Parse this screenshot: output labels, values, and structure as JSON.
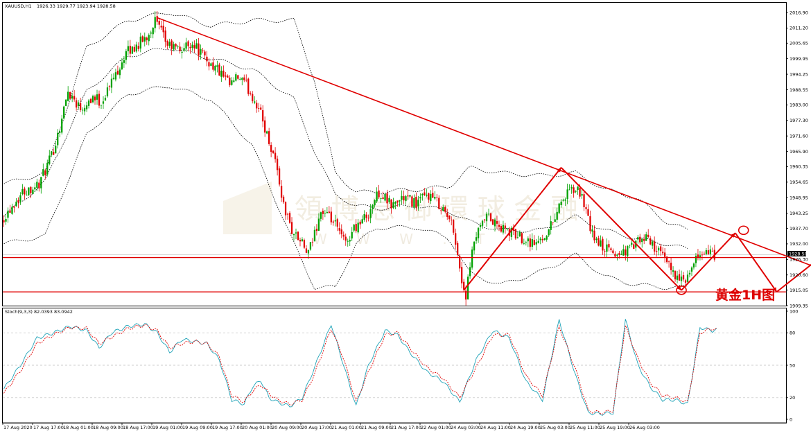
{
  "header": {
    "symbol": "XAUUSD,H1",
    "ohlc": "1926.33 1929.77 1923.94 1928.58"
  },
  "stoch": {
    "label": "Stoch(9,3,3) 82.0393 83.0942"
  },
  "watermark": {
    "cn": "領 博 息 御 環 球 金 融",
    "latin": "W W W . T"
  },
  "annotation": "黄金1H图",
  "price_tag": "1928.58",
  "colors": {
    "bull": "#00a000",
    "bear": "#e00000",
    "red_line": "#e00000",
    "band": "#000000",
    "stoch_main": "#1fa3b8",
    "stoch_signal": "#e00000",
    "frame": "#000000",
    "hline": "#c9c9c9"
  },
  "chart_data": [
    {
      "type": "candlestick",
      "title": "XAUUSD,H1",
      "ylim": [
        1909.35,
        2016.9
      ],
      "y_ticks": [
        "2016.90",
        "2011.20",
        "2005.65",
        "1999.95",
        "1994.25",
        "1988.55",
        "1983.00",
        "1977.30",
        "1971.60",
        "1965.90",
        "1960.35",
        "1954.65",
        "1948.95",
        "1943.25",
        "1937.70",
        "1932.00",
        "1926.30",
        "1920.60",
        "1915.05",
        "1909.35"
      ],
      "x_ticks": [
        "17 Aug 2020",
        "17 Aug 17:00",
        "18 Aug 01:00",
        "18 Aug 09:00",
        "18 Aug 17:00",
        "19 Aug 01:00",
        "19 Aug 09:00",
        "19 Aug 17:00",
        "20 Aug 01:00",
        "20 Aug 09:00",
        "20 Aug 17:00",
        "21 Aug 01:00",
        "21 Aug 09:00",
        "21 Aug 17:00",
        "22 Aug 01:00",
        "24 Aug 03:00",
        "24 Aug 11:00",
        "24 Aug 19:00",
        "25 Aug 03:00",
        "25 Aug 11:00",
        "25 Aug 19:00",
        "26 Aug 03:00"
      ],
      "anchors": [
        [
          0,
          1941
        ],
        [
          4,
          1945
        ],
        [
          10,
          1951
        ],
        [
          18,
          1954
        ],
        [
          24,
          1964
        ],
        [
          28,
          1975
        ],
        [
          32,
          1988
        ],
        [
          38,
          1982
        ],
        [
          44,
          1986
        ],
        [
          48,
          1984
        ],
        [
          52,
          1990
        ],
        [
          56,
          1996
        ],
        [
          60,
          2002
        ],
        [
          64,
          2004
        ],
        [
          70,
          2008
        ],
        [
          74,
          2014
        ],
        [
          80,
          2005
        ],
        [
          86,
          2003
        ],
        [
          92,
          2006
        ],
        [
          98,
          2000
        ],
        [
          104,
          1996
        ],
        [
          110,
          1990
        ],
        [
          114,
          1993
        ],
        [
          118,
          1990
        ],
        [
          124,
          1982
        ],
        [
          128,
          1972
        ],
        [
          132,
          1963
        ],
        [
          136,
          1946
        ],
        [
          140,
          1937
        ],
        [
          144,
          1933
        ],
        [
          148,
          1928
        ],
        [
          154,
          1944
        ],
        [
          160,
          1940
        ],
        [
          166,
          1932
        ],
        [
          170,
          1938
        ],
        [
          176,
          1942
        ],
        [
          182,
          1951
        ],
        [
          188,
          1946
        ],
        [
          194,
          1949
        ],
        [
          200,
          1947
        ],
        [
          206,
          1950
        ],
        [
          212,
          1946
        ],
        [
          218,
          1938
        ],
        [
          222,
          1918
        ],
        [
          224,
          1913
        ],
        [
          228,
          1933
        ],
        [
          234,
          1942
        ],
        [
          240,
          1938
        ],
        [
          246,
          1936
        ],
        [
          252,
          1934
        ],
        [
          258,
          1932
        ],
        [
          264,
          1937
        ],
        [
          270,
          1948
        ],
        [
          276,
          1952
        ],
        [
          280,
          1950
        ],
        [
          284,
          1937
        ],
        [
          288,
          1932
        ],
        [
          292,
          1930
        ],
        [
          296,
          1928
        ],
        [
          300,
          1929
        ],
        [
          304,
          1931
        ],
        [
          308,
          1933
        ],
        [
          312,
          1934
        ],
        [
          316,
          1930
        ],
        [
          320,
          1926
        ],
        [
          324,
          1922
        ],
        [
          328,
          1918
        ],
        [
          332,
          1920
        ],
        [
          336,
          1928
        ],
        [
          340,
          1929
        ],
        [
          343,
          1928
        ]
      ],
      "bb_upper": [
        [
          0,
          1954
        ],
        [
          20,
          1958
        ],
        [
          40,
          2004
        ],
        [
          60,
          2014
        ],
        [
          80,
          2017
        ],
        [
          100,
          2012
        ],
        [
          120,
          2014
        ],
        [
          140,
          2014
        ],
        [
          150,
          1992
        ],
        [
          160,
          1958
        ],
        [
          170,
          1951
        ],
        [
          180,
          1951
        ],
        [
          200,
          1952
        ],
        [
          215,
          1953
        ],
        [
          225,
          1960
        ],
        [
          240,
          1958
        ],
        [
          260,
          1957
        ],
        [
          276,
          1958
        ],
        [
          290,
          1952
        ],
        [
          305,
          1949
        ],
        [
          320,
          1940
        ],
        [
          330,
          1937
        ]
      ],
      "bb_mid": [
        [
          0,
          1942
        ],
        [
          20,
          1955
        ],
        [
          40,
          1988
        ],
        [
          60,
          2001
        ],
        [
          80,
          2004
        ],
        [
          100,
          2000
        ],
        [
          120,
          1996
        ],
        [
          140,
          1985
        ],
        [
          150,
          1966
        ],
        [
          160,
          1950
        ],
        [
          170,
          1946
        ],
        [
          180,
          1945
        ],
        [
          200,
          1946
        ],
        [
          215,
          1944
        ],
        [
          225,
          1940
        ],
        [
          240,
          1937
        ],
        [
          260,
          1937
        ],
        [
          276,
          1942
        ],
        [
          290,
          1937
        ],
        [
          305,
          1934
        ],
        [
          320,
          1932
        ],
        [
          330,
          1930
        ]
      ],
      "bb_lower": [
        [
          0,
          1932
        ],
        [
          20,
          1935
        ],
        [
          40,
          1972
        ],
        [
          60,
          1987
        ],
        [
          80,
          1990
        ],
        [
          100,
          1985
        ],
        [
          120,
          1968
        ],
        [
          140,
          1932
        ],
        [
          150,
          1916
        ],
        [
          160,
          1916
        ],
        [
          170,
          1932
        ],
        [
          180,
          1938
        ],
        [
          200,
          1938
        ],
        [
          215,
          1934
        ],
        [
          225,
          1921
        ],
        [
          240,
          1917
        ],
        [
          260,
          1922
        ],
        [
          276,
          1928
        ],
        [
          290,
          1920
        ],
        [
          305,
          1917
        ],
        [
          320,
          1916
        ],
        [
          330,
          1916
        ]
      ],
      "trendline_resistance": [
        [
          74,
          2015
        ],
        [
          435,
          1911
        ]
      ],
      "support_levels": [
        1927,
        1914.4
      ],
      "projection_path": [
        [
          222,
          1915
        ],
        [
          269,
          1960
        ],
        [
          327,
          1915
        ],
        [
          353,
          1936
        ],
        [
          373,
          1914.4
        ],
        [
          394,
          1927
        ]
      ],
      "circled_points": [
        [
          327,
          1915
        ],
        [
          357,
          1937
        ],
        [
          394,
          1927
        ]
      ],
      "annotation_text": "黄金1H图"
    },
    {
      "type": "line",
      "title": "Stoch(9,3,3) 82.0393 83.0942",
      "ylim": [
        0,
        100
      ],
      "y_ticks": [
        "100",
        "80",
        "50",
        "20",
        "0"
      ],
      "main": [
        [
          0,
          28
        ],
        [
          8,
          50
        ],
        [
          16,
          75
        ],
        [
          24,
          80
        ],
        [
          32,
          86
        ],
        [
          40,
          82
        ],
        [
          46,
          66
        ],
        [
          52,
          80
        ],
        [
          60,
          86
        ],
        [
          68,
          88
        ],
        [
          74,
          80
        ],
        [
          80,
          62
        ],
        [
          86,
          74
        ],
        [
          92,
          72
        ],
        [
          98,
          70
        ],
        [
          104,
          55
        ],
        [
          110,
          18
        ],
        [
          116,
          14
        ],
        [
          120,
          30
        ],
        [
          124,
          36
        ],
        [
          128,
          20
        ],
        [
          132,
          16
        ],
        [
          138,
          12
        ],
        [
          144,
          20
        ],
        [
          150,
          48
        ],
        [
          158,
          88
        ],
        [
          164,
          50
        ],
        [
          170,
          12
        ],
        [
          176,
          50
        ],
        [
          184,
          82
        ],
        [
          190,
          78
        ],
        [
          196,
          62
        ],
        [
          204,
          44
        ],
        [
          212,
          35
        ],
        [
          220,
          16
        ],
        [
          228,
          55
        ],
        [
          236,
          82
        ],
        [
          244,
          75
        ],
        [
          252,
          35
        ],
        [
          260,
          18
        ],
        [
          268,
          92
        ],
        [
          276,
          40
        ],
        [
          282,
          6
        ],
        [
          288,
          5
        ],
        [
          294,
          6
        ],
        [
          300,
          92
        ],
        [
          306,
          50
        ],
        [
          312,
          30
        ],
        [
          318,
          18
        ],
        [
          324,
          18
        ],
        [
          330,
          14
        ],
        [
          336,
          85
        ],
        [
          342,
          82
        ],
        [
          344,
          83
        ]
      ],
      "signal": [
        [
          0,
          24
        ],
        [
          8,
          45
        ],
        [
          16,
          70
        ],
        [
          24,
          78
        ],
        [
          32,
          85
        ],
        [
          40,
          84
        ],
        [
          46,
          70
        ],
        [
          52,
          76
        ],
        [
          60,
          84
        ],
        [
          68,
          87
        ],
        [
          74,
          82
        ],
        [
          80,
          66
        ],
        [
          86,
          70
        ],
        [
          92,
          72
        ],
        [
          98,
          70
        ],
        [
          104,
          58
        ],
        [
          110,
          22
        ],
        [
          116,
          16
        ],
        [
          120,
          26
        ],
        [
          124,
          32
        ],
        [
          128,
          24
        ],
        [
          132,
          18
        ],
        [
          138,
          14
        ],
        [
          144,
          18
        ],
        [
          150,
          42
        ],
        [
          158,
          84
        ],
        [
          164,
          56
        ],
        [
          170,
          16
        ],
        [
          176,
          44
        ],
        [
          184,
          78
        ],
        [
          190,
          80
        ],
        [
          196,
          66
        ],
        [
          204,
          48
        ],
        [
          212,
          38
        ],
        [
          220,
          20
        ],
        [
          228,
          48
        ],
        [
          236,
          78
        ],
        [
          244,
          78
        ],
        [
          252,
          40
        ],
        [
          260,
          22
        ],
        [
          268,
          86
        ],
        [
          276,
          46
        ],
        [
          282,
          8
        ],
        [
          288,
          6
        ],
        [
          294,
          8
        ],
        [
          300,
          86
        ],
        [
          306,
          56
        ],
        [
          312,
          34
        ],
        [
          318,
          22
        ],
        [
          324,
          20
        ],
        [
          330,
          16
        ],
        [
          336,
          80
        ],
        [
          342,
          84
        ],
        [
          344,
          83
        ]
      ]
    }
  ]
}
